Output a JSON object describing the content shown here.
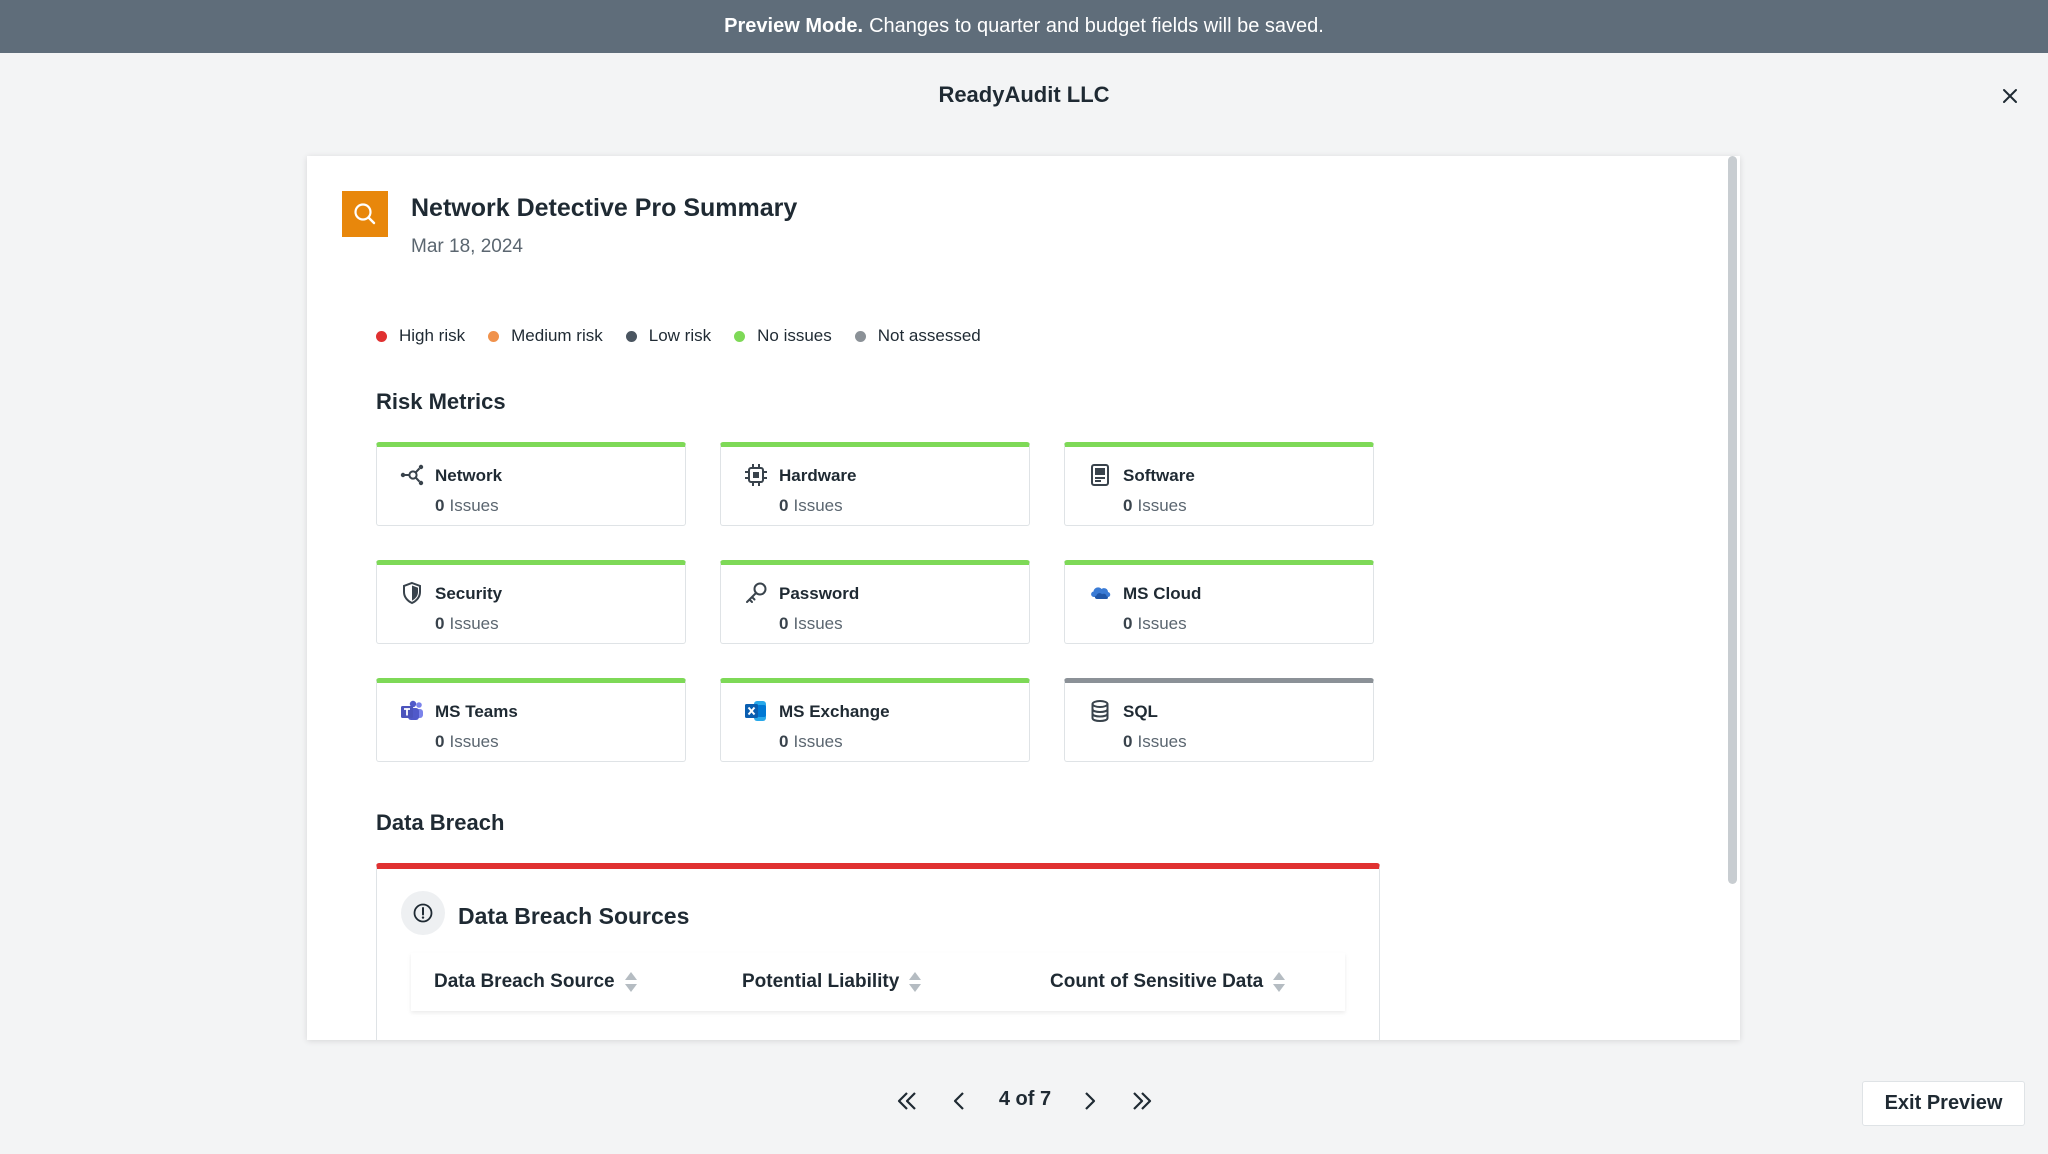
{
  "banner": {
    "bold": "Preview Mode.",
    "text": "Changes to quarter and budget fields will be saved."
  },
  "company": {
    "name": "ReadyAudit LLC"
  },
  "report": {
    "title": "Network Detective Pro Summary",
    "date": "Mar 18, 2024"
  },
  "legend": [
    {
      "label": "High risk",
      "color": "#e03131"
    },
    {
      "label": "Medium risk",
      "color": "#f0924c"
    },
    {
      "label": "Low risk",
      "color": "#4a5560"
    },
    {
      "label": "No issues",
      "color": "#7ed957"
    },
    {
      "label": "Not assessed",
      "color": "#8b9197"
    }
  ],
  "risk_metrics": {
    "title": "Risk Metrics",
    "issues_label": "Issues",
    "cards": [
      {
        "name": "Network",
        "count": "0",
        "icon": "network-icon",
        "status": "No issues"
      },
      {
        "name": "Hardware",
        "count": "0",
        "icon": "chip-icon",
        "status": "No issues"
      },
      {
        "name": "Software",
        "count": "0",
        "icon": "software-icon",
        "status": "No issues"
      },
      {
        "name": "Security",
        "count": "0",
        "icon": "shield-icon",
        "status": "No issues"
      },
      {
        "name": "Password",
        "count": "0",
        "icon": "key-icon",
        "status": "No issues"
      },
      {
        "name": "MS Cloud",
        "count": "0",
        "icon": "cloud-icon",
        "status": "No issues"
      },
      {
        "name": "MS Teams",
        "count": "0",
        "icon": "teams-icon",
        "status": "No issues"
      },
      {
        "name": "MS Exchange",
        "count": "0",
        "icon": "exchange-icon",
        "status": "No issues"
      },
      {
        "name": "SQL",
        "count": "0",
        "icon": "database-icon",
        "status": "Not assessed"
      }
    ]
  },
  "data_breach": {
    "title": "Data Breach",
    "panel_title": "Data Breach Sources",
    "columns": [
      "Data Breach Source",
      "Potential Liability",
      "Count of Sensitive Data"
    ]
  },
  "pager": {
    "label": "4 of 7",
    "current": 4,
    "total": 7
  },
  "exit_button": "Exit Preview"
}
